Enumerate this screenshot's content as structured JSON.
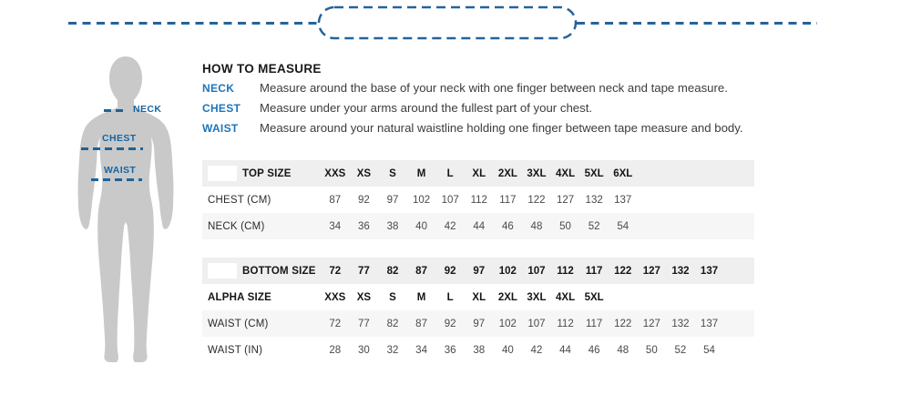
{
  "page": {
    "background": "#ffffff"
  },
  "decoration": {
    "type": "dashed-line-with-pill",
    "dash_color": "#25639b",
    "pill_fill": "#ffffff"
  },
  "figure": {
    "silhouette_color": "#c9c9c9",
    "label_color": "#1665a4",
    "labels": {
      "neck": "NECK",
      "chest": "CHEST",
      "waist": "WAIST"
    }
  },
  "howto": {
    "title": "HOW TO MEASURE",
    "label_color": "#1b75bc",
    "items": [
      {
        "label": "NECK",
        "text": "Measure around the base of your neck with one finger between neck and tape measure."
      },
      {
        "label": "CHEST",
        "text": "Measure under your arms around the fullest part of your chest."
      },
      {
        "label": "WAIST",
        "text": "Measure around your natural waistline holding one finger between tape measure and body."
      }
    ]
  },
  "tables": [
    {
      "name": "top-size-table",
      "header": {
        "label": "TOP SIZE",
        "logo_patch": true,
        "values": [
          "XXS",
          "XS",
          "S",
          "M",
          "L",
          "XL",
          "2XL",
          "3XL",
          "4XL",
          "5XL",
          "6XL"
        ]
      },
      "rows": [
        {
          "label": "CHEST (CM)",
          "bold": false,
          "values": [
            "87",
            "92",
            "97",
            "102",
            "107",
            "112",
            "117",
            "122",
            "127",
            "132",
            "137"
          ]
        },
        {
          "label": "NECK (CM)",
          "bold": false,
          "values": [
            "34",
            "36",
            "38",
            "40",
            "42",
            "44",
            "46",
            "48",
            "50",
            "52",
            "54"
          ]
        }
      ]
    },
    {
      "name": "bottom-size-table",
      "header": {
        "label": "BOTTOM SIZE",
        "logo_patch": true,
        "values": [
          "72",
          "77",
          "82",
          "87",
          "92",
          "97",
          "102",
          "107",
          "112",
          "117",
          "122",
          "127",
          "132",
          "137"
        ]
      },
      "rows": [
        {
          "label": "ALPHA SIZE",
          "bold": true,
          "values": [
            "XXS",
            "XS",
            "S",
            "M",
            "L",
            "XL",
            "2XL",
            "3XL",
            "4XL",
            "5XL"
          ]
        },
        {
          "label": "WAIST (CM)",
          "bold": false,
          "values": [
            "72",
            "77",
            "82",
            "87",
            "92",
            "97",
            "102",
            "107",
            "112",
            "117",
            "122",
            "127",
            "132",
            "137"
          ]
        },
        {
          "label": "WAIST (IN)",
          "bold": false,
          "values": [
            "28",
            "30",
            "32",
            "34",
            "36",
            "38",
            "40",
            "42",
            "44",
            "46",
            "48",
            "50",
            "52",
            "54"
          ]
        }
      ]
    }
  ],
  "colors": {
    "header_row_bg": "#efefef",
    "alt_row_bg": "#f6f6f6",
    "table_text": "#4a4a4a",
    "bold_text": "#151515",
    "body_text": "#3c3c3c",
    "accent_blue": "#1b75bc",
    "dash_blue": "#25639b",
    "silhouette_gray": "#c9c9c9"
  }
}
